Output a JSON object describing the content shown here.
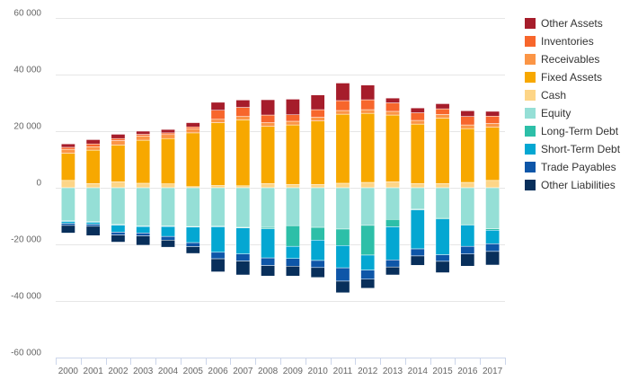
{
  "chart_data": {
    "type": "bar",
    "stacked": true,
    "categories": [
      "2000",
      "2001",
      "2002",
      "2003",
      "2004",
      "2005",
      "2006",
      "2007",
      "2008",
      "2009",
      "2010",
      "2011",
      "2012",
      "2013",
      "2014",
      "2015",
      "2016",
      "2017"
    ],
    "ylim": [
      -60000,
      60000
    ],
    "y_ticks": [
      -60000,
      -40000,
      -20000,
      0,
      20000,
      40000,
      60000
    ],
    "y_tick_labels": [
      "-60 000",
      "-40 000",
      "-20 000",
      "0",
      "20 000",
      "40 000",
      "60 000"
    ],
    "grid": true,
    "legend_position": "right",
    "series": [
      {
        "name": "Cash",
        "color": "#fdd587",
        "values": [
          2600,
          1500,
          2100,
          1600,
          1400,
          400,
          800,
          700,
          1500,
          1200,
          1200,
          1600,
          1900,
          2100,
          1500,
          1500,
          1900,
          2600
        ]
      },
      {
        "name": "Fixed Assets",
        "color": "#f7a800",
        "values": [
          9600,
          11800,
          13000,
          15200,
          16000,
          19000,
          22200,
          23300,
          20200,
          21000,
          22400,
          24400,
          24400,
          23600,
          21000,
          23100,
          19000,
          18800
        ]
      },
      {
        "name": "Receivables",
        "color": "#fb9546",
        "values": [
          1400,
          1200,
          1600,
          1500,
          1400,
          1400,
          1200,
          1200,
          1300,
          1300,
          1300,
          1300,
          1300,
          1300,
          1300,
          1300,
          1300,
          1300
        ]
      },
      {
        "name": "Inventories",
        "color": "#f7662c",
        "values": [
          700,
          1000,
          700,
          600,
          600,
          700,
          3200,
          3200,
          2700,
          2300,
          2700,
          3500,
          3500,
          3000,
          2700,
          2000,
          3000,
          2600
        ]
      },
      {
        "name": "Other Assets",
        "color": "#a61d2b",
        "values": [
          1200,
          1500,
          1500,
          1100,
          1200,
          1500,
          2800,
          2600,
          5400,
          5500,
          5200,
          6200,
          5200,
          1700,
          1700,
          1800,
          2000,
          1700
        ]
      },
      {
        "name": "Equity",
        "color": "#95dfd6",
        "values": [
          -11700,
          -12000,
          -13000,
          -13500,
          -13500,
          -13700,
          -13600,
          -14000,
          -14000,
          -13400,
          -14000,
          -14600,
          -13300,
          -11200,
          -7600,
          -10600,
          -12800,
          -14500
        ]
      },
      {
        "name": "Long-Term Debt",
        "color": "#2dbfa8",
        "values": [
          -200,
          -200,
          -200,
          -200,
          -200,
          -200,
          -200,
          -200,
          -500,
          -7300,
          -4500,
          -5800,
          -10500,
          -2600,
          -200,
          -400,
          -400,
          -500
        ]
      },
      {
        "name": "Short-Term Debt",
        "color": "#04a7d2",
        "values": [
          -700,
          -700,
          -2500,
          -2300,
          -3500,
          -5500,
          -9000,
          -9200,
          -10300,
          -4300,
          -7200,
          -7900,
          -5300,
          -11700,
          -13800,
          -12700,
          -7500,
          -4800
        ]
      },
      {
        "name": "Trade Payables",
        "color": "#0e56a8",
        "values": [
          -700,
          -700,
          -1000,
          -1000,
          -1300,
          -1400,
          -2300,
          -2500,
          -2700,
          -2700,
          -2500,
          -4700,
          -3200,
          -2500,
          -2500,
          -2300,
          -2700,
          -2700
        ]
      },
      {
        "name": "Other Liabilities",
        "color": "#082f5b",
        "values": [
          -2700,
          -3300,
          -2500,
          -3300,
          -2500,
          -2400,
          -4600,
          -4900,
          -3700,
          -3500,
          -3500,
          -4100,
          -3200,
          -2800,
          -3300,
          -4000,
          -4300,
          -4800
        ]
      }
    ],
    "legend_order": [
      "Other Assets",
      "Inventories",
      "Receivables",
      "Fixed Assets",
      "Cash",
      "Equity",
      "Long-Term Debt",
      "Short-Term Debt",
      "Trade Payables",
      "Other Liabilities"
    ]
  }
}
